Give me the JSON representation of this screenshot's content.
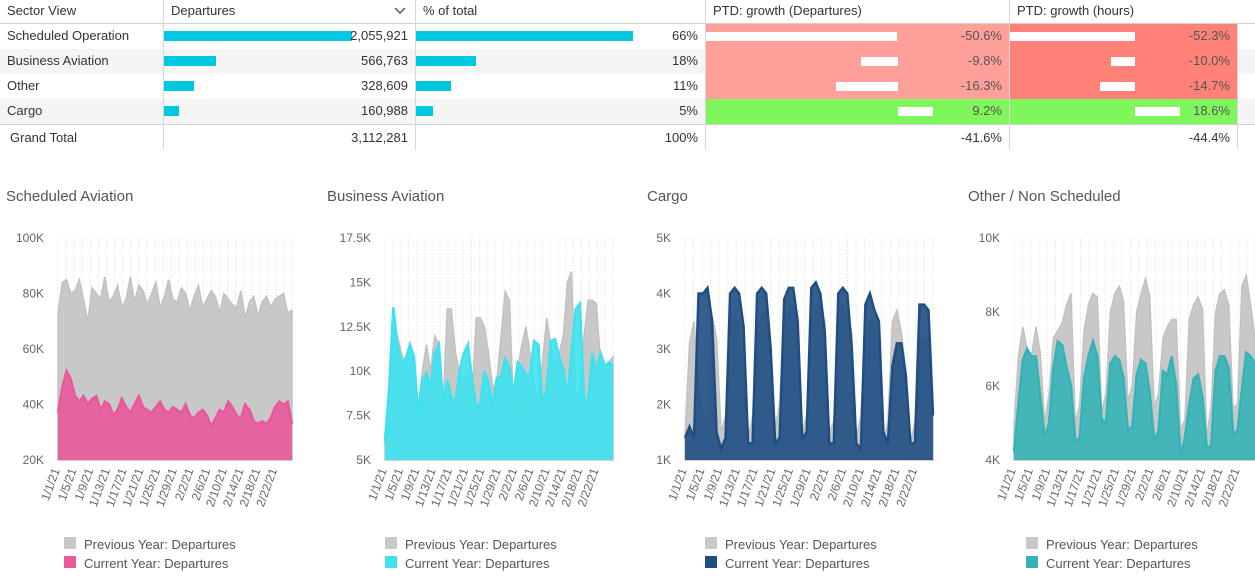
{
  "table": {
    "headers": {
      "sector": "Sector View",
      "departures": "Departures",
      "pct": "% of total",
      "growth_dep": "PTD: growth (Departures)",
      "growth_hours": "PTD: growth (hours)"
    },
    "rows": [
      {
        "sector": "Scheduled Operation",
        "departures": "2,055,921",
        "departures_value": 2055921,
        "pct": "66%",
        "pct_value": 66,
        "growth_dep": "-50.6%",
        "growth_dep_value": -50.6,
        "growth_hours": "-52.3%",
        "growth_hours_value": -52.3,
        "dep_bg": "#ffa19a",
        "hours_bg": "#ff8178"
      },
      {
        "sector": "Business Aviation",
        "departures": "566,763",
        "departures_value": 566763,
        "pct": "18%",
        "pct_value": 18,
        "growth_dep": "-9.8%",
        "growth_dep_value": -9.8,
        "growth_hours": "-10.0%",
        "growth_hours_value": -10.0,
        "dep_bg": "#ffa19a",
        "hours_bg": "#ff8178"
      },
      {
        "sector": "Other",
        "departures": "328,609",
        "departures_value": 328609,
        "pct": "11%",
        "pct_value": 11,
        "growth_dep": "-16.3%",
        "growth_dep_value": -16.3,
        "growth_hours": "-14.7%",
        "growth_hours_value": -14.7,
        "dep_bg": "#ffa19a",
        "hours_bg": "#ff8178"
      },
      {
        "sector": "Cargo",
        "departures": "160,988",
        "departures_value": 160988,
        "pct": "5%",
        "pct_value": 5,
        "growth_dep": "9.2%",
        "growth_dep_value": 9.2,
        "growth_hours": "18.6%",
        "growth_hours_value": 18.6,
        "dep_bg": "#7ff75c",
        "hours_bg": "#7ff75c"
      }
    ],
    "total": {
      "sector": "Grand Total",
      "departures": "3,112,281",
      "pct": "100%",
      "growth_dep": "-41.6%",
      "growth_hours": "-44.4%"
    }
  },
  "colors": {
    "previous": "#c8c8c8",
    "bar": "#00c8e0"
  },
  "legend_labels": {
    "previous": "Previous Year: Departures",
    "current": "Current Year: Departures"
  },
  "x_tick_labels": [
    "1/1/21",
    "1/5/21",
    "1/9/21",
    "1/13/21",
    "1/17/21",
    "1/21/21",
    "1/25/21",
    "1/29/21",
    "2/2/21",
    "2/6/21",
    "2/10/21",
    "2/14/21",
    "2/18/21",
    "2/22/21"
  ],
  "chart_data": [
    {
      "type": "area",
      "title": "Scheduled Aviation",
      "x_start": "1/1/21",
      "x_end": "2/25/21",
      "x_ticks": [
        "1/1/21",
        "1/5/21",
        "1/9/21",
        "1/13/21",
        "1/17/21",
        "1/21/21",
        "1/25/21",
        "1/29/21",
        "2/2/21",
        "2/6/21",
        "2/10/21",
        "2/14/21",
        "2/18/21",
        "2/22/21"
      ],
      "ylim": [
        20000,
        100000
      ],
      "y_ticks": [
        "20K",
        "40K",
        "60K",
        "80K",
        "100K"
      ],
      "y_tick_values": [
        20000,
        40000,
        60000,
        80000,
        100000
      ],
      "current_color": "#e8589a",
      "series": [
        {
          "name": "Previous Year: Departures",
          "values": [
            73000,
            84000,
            85000,
            80000,
            81000,
            85000,
            78000,
            70000,
            82000,
            80000,
            78000,
            86000,
            77000,
            79000,
            83000,
            75000,
            78000,
            86000,
            77000,
            83000,
            81000,
            76000,
            80000,
            84000,
            75000,
            79000,
            85000,
            78000,
            77000,
            82000,
            80000,
            74000,
            79000,
            83000,
            75000,
            78000,
            81000,
            79000,
            73000,
            80000,
            78000,
            76000,
            75000,
            81000,
            71000,
            77000,
            79000,
            72000,
            77000,
            79000,
            75000,
            78000,
            79000,
            80000,
            73000,
            74000
          ]
        },
        {
          "name": "Current Year: Departures",
          "values": [
            37000,
            46000,
            52000,
            49000,
            43000,
            41000,
            43000,
            40000,
            42000,
            43000,
            38000,
            41000,
            40000,
            36000,
            38000,
            42000,
            39000,
            37000,
            40000,
            43000,
            39000,
            38000,
            37000,
            39000,
            41000,
            38000,
            37000,
            39000,
            38000,
            37000,
            40000,
            36000,
            35000,
            37000,
            38000,
            36000,
            32000,
            35000,
            38000,
            37000,
            41000,
            39000,
            36000,
            35000,
            40000,
            38000,
            34000,
            33000,
            34000,
            33000,
            35000,
            39000,
            41000,
            40000,
            41000,
            33000
          ]
        }
      ]
    },
    {
      "type": "area",
      "title": "Business Aviation",
      "x_start": "1/1/21",
      "x_end": "2/25/21",
      "x_ticks": [
        "1/1/21",
        "1/5/21",
        "1/9/21",
        "1/13/21",
        "1/17/21",
        "1/21/21",
        "1/25/21",
        "1/29/21",
        "2/2/21",
        "2/6/21",
        "2/10/21",
        "2/14/21",
        "2/18/21",
        "2/22/21"
      ],
      "ylim": [
        5000,
        17500
      ],
      "y_ticks": [
        "5K",
        "7.5K",
        "10K",
        "12.5K",
        "15K",
        "17.5K"
      ],
      "y_tick_values": [
        5000,
        7500,
        10000,
        12500,
        15000,
        17500
      ],
      "current_color": "#3de2ee",
      "series": [
        {
          "name": "Previous Year: Departures",
          "values": [
            6500,
            9000,
            12500,
            12000,
            11000,
            10500,
            11000,
            10500,
            8000,
            10000,
            11500,
            10000,
            12000,
            11500,
            8000,
            13500,
            13500,
            11000,
            10000,
            9500,
            10000,
            8500,
            13000,
            13000,
            12500,
            11000,
            9000,
            9500,
            12000,
            14500,
            14000,
            8000,
            10000,
            11500,
            12500,
            11000,
            9000,
            8500,
            10500,
            13000,
            11500,
            10000,
            11000,
            12000,
            15000,
            15600,
            8500,
            9000,
            12000,
            14000,
            14000,
            13800,
            10500,
            10000,
            10500,
            10800
          ]
        },
        {
          "name": "Current Year: Departures",
          "values": [
            6000,
            9000,
            13600,
            11500,
            10500,
            10700,
            11500,
            10800,
            7500,
            9500,
            9900,
            9000,
            11000,
            11500,
            8200,
            9500,
            8500,
            8300,
            10000,
            11000,
            11500,
            9500,
            8000,
            8200,
            10000,
            9300,
            8000,
            9600,
            9700,
            10700,
            10200,
            8600,
            10500,
            10200,
            9800,
            9800,
            11700,
            11500,
            8000,
            9000,
            11700,
            11800,
            10800,
            10100,
            8500,
            11000,
            13500,
            13800,
            8500,
            8300,
            11000,
            10000,
            11000,
            10300,
            10500,
            10300
          ]
        }
      ]
    },
    {
      "type": "area",
      "title": "Cargo",
      "x_start": "1/1/21",
      "x_end": "2/25/21",
      "x_ticks": [
        "1/1/21",
        "1/5/21",
        "1/9/21",
        "1/13/21",
        "1/17/21",
        "1/21/21",
        "1/25/21",
        "1/29/21",
        "2/2/21",
        "2/6/21",
        "2/10/21",
        "2/14/21",
        "2/18/21",
        "2/22/21"
      ],
      "ylim": [
        1000,
        5000
      ],
      "y_ticks": [
        "1K",
        "2K",
        "3K",
        "4K",
        "5K"
      ],
      "y_tick_values": [
        1000,
        2000,
        3000,
        4000,
        5000
      ],
      "current_color": "#1f4e82",
      "series": [
        {
          "name": "Previous Year: Departures",
          "values": [
            1400,
            3100,
            3500,
            2500,
            1700,
            1700,
            3600,
            3200,
            1500,
            1800,
            3600,
            3500,
            3500,
            2200,
            1400,
            1800,
            3400,
            3600,
            3700,
            3000,
            1600,
            2000,
            3600,
            3800,
            3800,
            3500,
            1500,
            1800,
            3700,
            3800,
            3800,
            3500,
            1500,
            1700,
            3700,
            3800,
            3600,
            3300,
            1400,
            1800,
            3400,
            3500,
            3500,
            3200,
            1300,
            1700,
            3500,
            3700,
            3300,
            2600,
            1300,
            1700,
            3100,
            3200,
            3200,
            2000
          ]
        },
        {
          "name": "Current Year: Departures",
          "values": [
            1400,
            1600,
            1400,
            4000,
            4000,
            4100,
            3500,
            1500,
            1200,
            1400,
            4000,
            4100,
            4000,
            3400,
            1300,
            1300,
            4000,
            4100,
            4000,
            3000,
            1300,
            1400,
            3900,
            4100,
            4100,
            3500,
            1400,
            1500,
            4100,
            4200,
            4000,
            3300,
            1300,
            1300,
            4000,
            4100,
            4000,
            3000,
            1300,
            1200,
            3800,
            4000,
            3700,
            3500,
            1500,
            1300,
            2700,
            3100,
            3100,
            2500,
            1300,
            1300,
            3800,
            3800,
            3700,
            1800
          ]
        }
      ]
    },
    {
      "type": "area",
      "title": "Other / Non Scheduled",
      "x_start": "1/1/21",
      "x_end": "2/25/21",
      "x_ticks": [
        "1/1/21",
        "1/5/21",
        "1/9/21",
        "1/13/21",
        "1/17/21",
        "1/21/21",
        "1/25/21",
        "1/29/21",
        "2/2/21",
        "2/6/21",
        "2/10/21",
        "2/14/21",
        "2/18/21",
        "2/22/21"
      ],
      "ylim": [
        4000,
        10000
      ],
      "y_ticks": [
        "4K",
        "6K",
        "8K",
        "10K"
      ],
      "y_tick_values": [
        4000,
        6000,
        8000,
        10000
      ],
      "current_color": "#35b3b6",
      "series": [
        {
          "name": "Previous Year: Departures",
          "values": [
            4900,
            6800,
            7600,
            7000,
            6800,
            7600,
            6900,
            5000,
            5800,
            7300,
            7500,
            7700,
            8200,
            8500,
            5000,
            5500,
            7500,
            8200,
            8500,
            8400,
            5300,
            5800,
            8000,
            8500,
            8700,
            8300,
            5600,
            6000,
            8000,
            8500,
            8900,
            8400,
            5400,
            5800,
            7300,
            7600,
            7800,
            7800,
            4800,
            5100,
            7800,
            8200,
            8400,
            8100,
            4600,
            5500,
            8000,
            8500,
            8600,
            8200,
            5400,
            5500,
            8700,
            9000,
            8200,
            7300
          ]
        },
        {
          "name": "Current Year: Departures",
          "values": [
            4200,
            5500,
            6700,
            7000,
            6800,
            6800,
            5700,
            4600,
            5000,
            6500,
            7200,
            7100,
            6500,
            6000,
            4500,
            4600,
            6200,
            6800,
            7200,
            6800,
            5100,
            5000,
            6600,
            6800,
            6700,
            6200,
            4800,
            4900,
            6300,
            6700,
            6600,
            5800,
            4500,
            4800,
            6400,
            6300,
            6800,
            6000,
            4100,
            4600,
            5500,
            6200,
            6300,
            5700,
            4300,
            4400,
            6400,
            6800,
            6800,
            6500,
            4700,
            4800,
            5900,
            6900,
            6800,
            6600
          ]
        }
      ]
    }
  ]
}
